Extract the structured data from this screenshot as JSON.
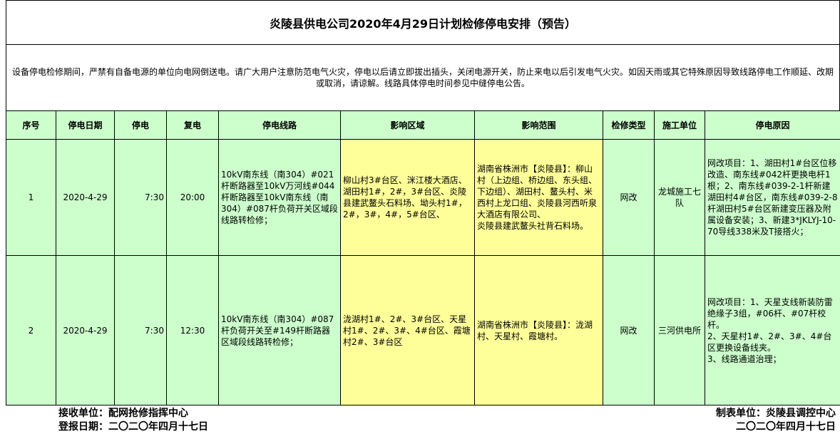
{
  "title": "炎陵县供电公司2020年4月29日计划检修停电安排（预告）",
  "notice": "设备停电检修期间，严禁有自备电源的单位向电网倒送电。请广大用户注意防范电气火灾，停电以后请立即拔出插头，关闭电源开关，防止来电以后引发电气火灾。如因天雨或其它特殊原因导致线路停电工作顺延、改期或取消，请谅解。线路具体停电时间参见中缝停电公告。",
  "headers": [
    "序号",
    "停电日期",
    "停电",
    "复电",
    "停电线路",
    "影响区域",
    "影响范围",
    "检修类型",
    "施工单位",
    "停电原因"
  ],
  "rows": [
    [
      "1",
      "2020-4-29",
      "7:30",
      "20:00",
      "10kV南东线（南304）#021杆断路器至10kV万河线#044杆断路器至10kV南东线（南304）#087杆负荷开关区域段线路转检修；",
      "柳山村3#台区、洣江楼大酒店、湖田村1#，2#，3#台区、炎陵县建武鳌头石料场、坳头村1#，2#，3#，4#，5#台区、",
      "湖南省株洲市【炎陵县】：柳山村（上边组、桥边组、东头组、下边组）、湖田村、鳌头村、米西村上龙口组、炎陵县河西听泉大酒店有限公司、\n炎陵县建武鳌头社背石料场。",
      "网改",
      "龙城施工七队",
      "网改项目：1、湖田村1#台区位移改造、南东线#042杆更换电杆1根；2、南东线#039-2-1杆新建湖田村4#台区，南东线#039-2-8杆湖田村5#台区新建变压器及附属设备安装；3、新建3*JKLYJ-10-70导线338米及T接搭火；"
    ],
    [
      "2",
      "2020-4-29",
      "7:30",
      "12:30",
      "10kV南东线（南304）#087杆负荷开关至#149杆断路器区域段线路转检修；",
      "泷湖村1#、2#、3#台区、天星村1#、2#、3#、4#台区、霞塘村2#、3#台区",
      "湖南省株洲市【炎陵县】：泷湖村、天星村、霞塘村。",
      "网改",
      "三河供电所",
      "网改项目：1、天星支线新装防雷绝缘子3组，#06杆、#07杆校杆。\n2、天星村1#、2#、3#、4#台区更换设备线夹。\n3、线路通道治理；"
    ]
  ],
  "footer": {
    "receiver": "接收单位：配网抢修指挥中心",
    "report_date": "登报日期：二〇二〇年四月十七日",
    "maker": "制表单位：炎陵县调控中心",
    "maker_date": "二〇二〇年四月十七日"
  }
}
